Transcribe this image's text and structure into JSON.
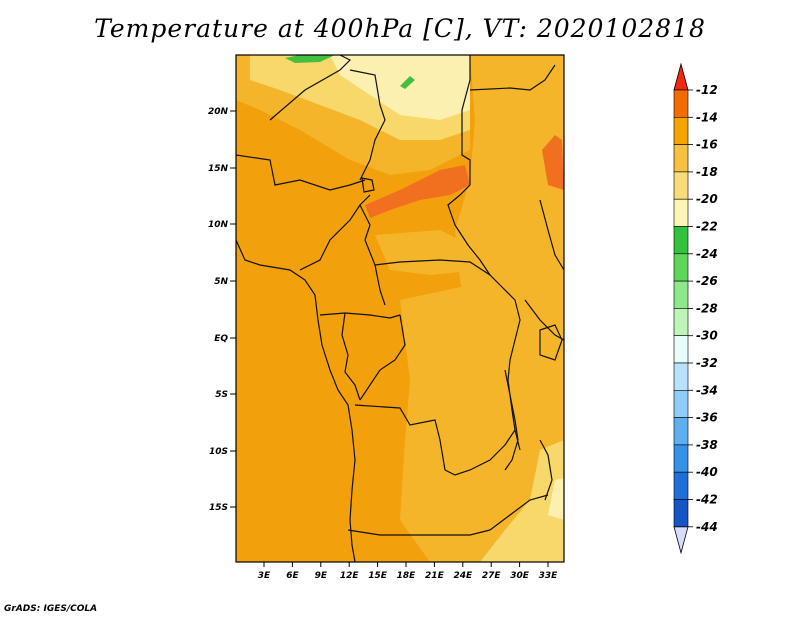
{
  "title": "Temperature at 400hPa [C], VT: 2020102818",
  "credit": "GrADS: IGES/COLA",
  "map": {
    "lat_labels": [
      "20N",
      "15N",
      "10N",
      "5N",
      "EQ",
      "5S",
      "10S",
      "15S"
    ],
    "lon_labels": [
      "3E",
      "6E",
      "9E",
      "12E",
      "15E",
      "18E",
      "21E",
      "24E",
      "27E",
      "30E",
      "33E"
    ]
  },
  "colorbar": {
    "labels": [
      "-12",
      "-14",
      "-16",
      "-18",
      "-20",
      "-22",
      "-24",
      "-26",
      "-28",
      "-30",
      "-32",
      "-34",
      "-36",
      "-38",
      "-40",
      "-42",
      "-44"
    ],
    "colors": [
      "#f0280c",
      "#f26c00",
      "#f5a500",
      "#f6c143",
      "#f9dc7a",
      "#fcf5b5",
      "#33c23c",
      "#5fd65b",
      "#8ee88a",
      "#bdf5b8",
      "#e6fcfa",
      "#b8e1fa",
      "#8dcdf7",
      "#5eaef0",
      "#3592e6",
      "#1e6fd9",
      "#1555c4",
      "#0c3fb4",
      "#061f8f",
      "#0a1173"
    ],
    "over_color": "#f0280c",
    "under_color": "#d6dcfa"
  },
  "colors": {
    "base": "#f2a00c",
    "warm": "#f5b52a",
    "light": "#f8d86a",
    "pale": "#fbf0b0",
    "hot": "#f07020",
    "green": "#44c040"
  }
}
